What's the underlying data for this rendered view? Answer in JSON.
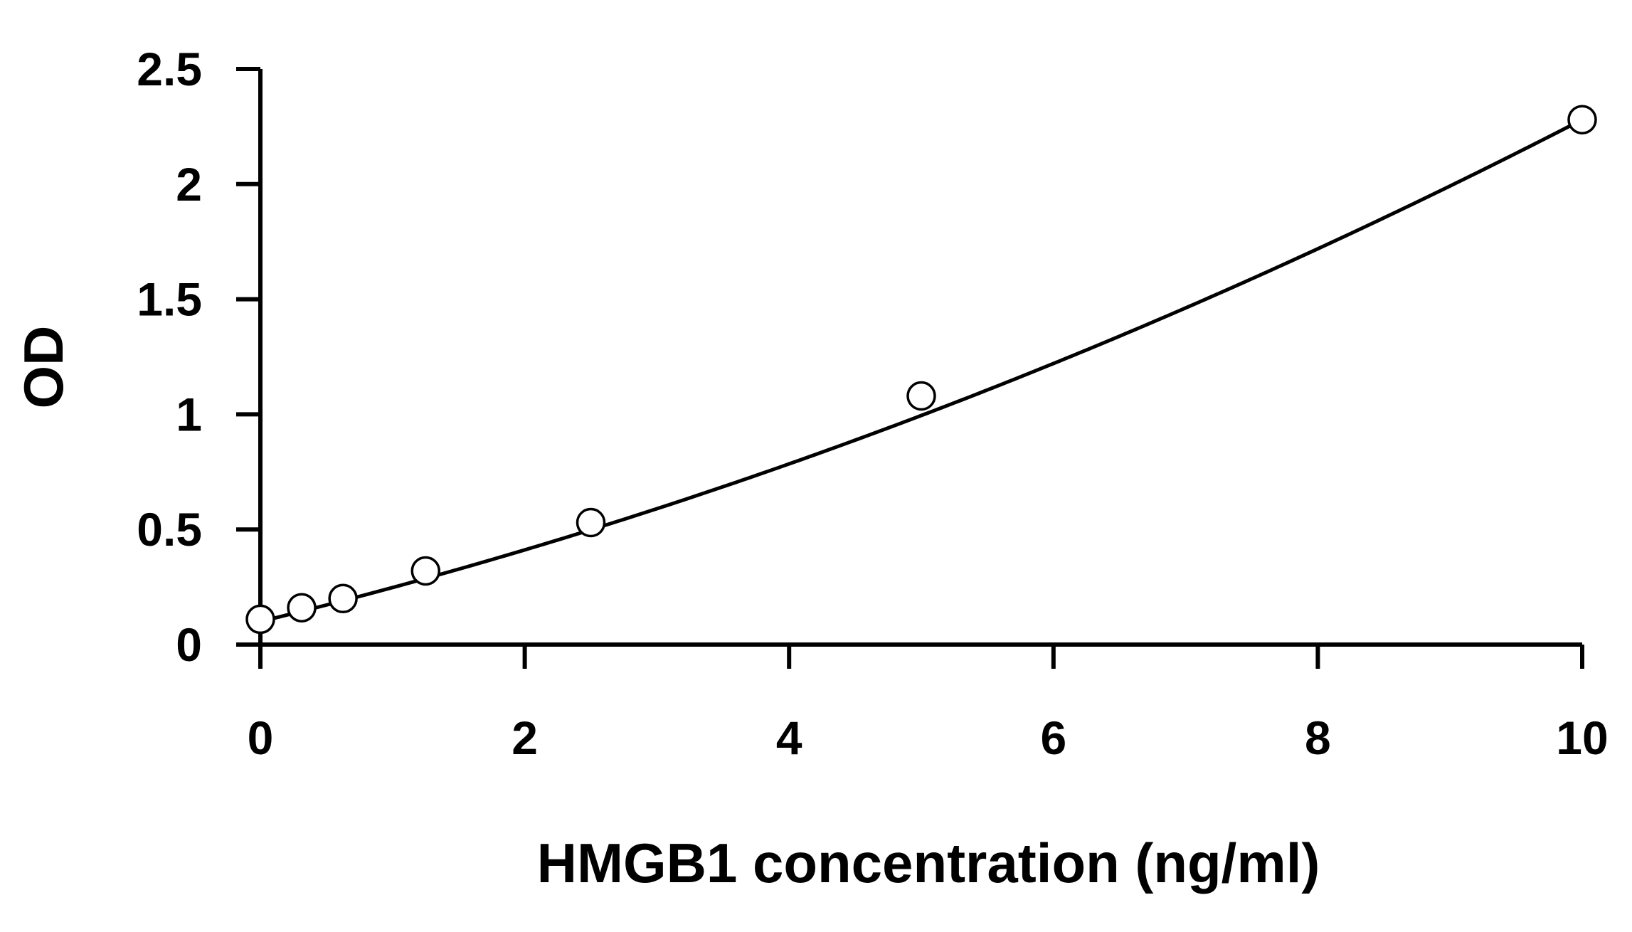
{
  "chart_data": {
    "type": "scatter",
    "title": "",
    "xlabel": "HMGB1 concentration (ng/ml)",
    "ylabel": "OD",
    "xlim": [
      0,
      10
    ],
    "ylim": [
      0,
      2.5
    ],
    "x_ticks": [
      0,
      2,
      4,
      6,
      8,
      10
    ],
    "y_ticks": [
      0,
      0.5,
      1,
      1.5,
      2,
      2.5
    ],
    "x_tick_labels": [
      "0",
      "2",
      "4",
      "6",
      "8",
      "10"
    ],
    "y_tick_labels": [
      "0",
      "0.5",
      "1",
      "1.5",
      "2",
      "2.5"
    ],
    "grid": false,
    "legend": "none",
    "series": [
      {
        "marker": "open-circle",
        "x": [
          0,
          0.3125,
          0.625,
          1.25,
          2.5,
          5,
          10
        ],
        "y": [
          0.11,
          0.16,
          0.2,
          0.32,
          0.53,
          1.08,
          2.28
        ]
      }
    ],
    "fit_curve": {
      "type": "polynomial",
      "coefficients": [
        0.1,
        0.14,
        0.0078
      ]
    },
    "colors": {
      "axis": "#000000",
      "line": "#000000",
      "marker_fill": "#ffffff",
      "background": "#ffffff"
    }
  }
}
